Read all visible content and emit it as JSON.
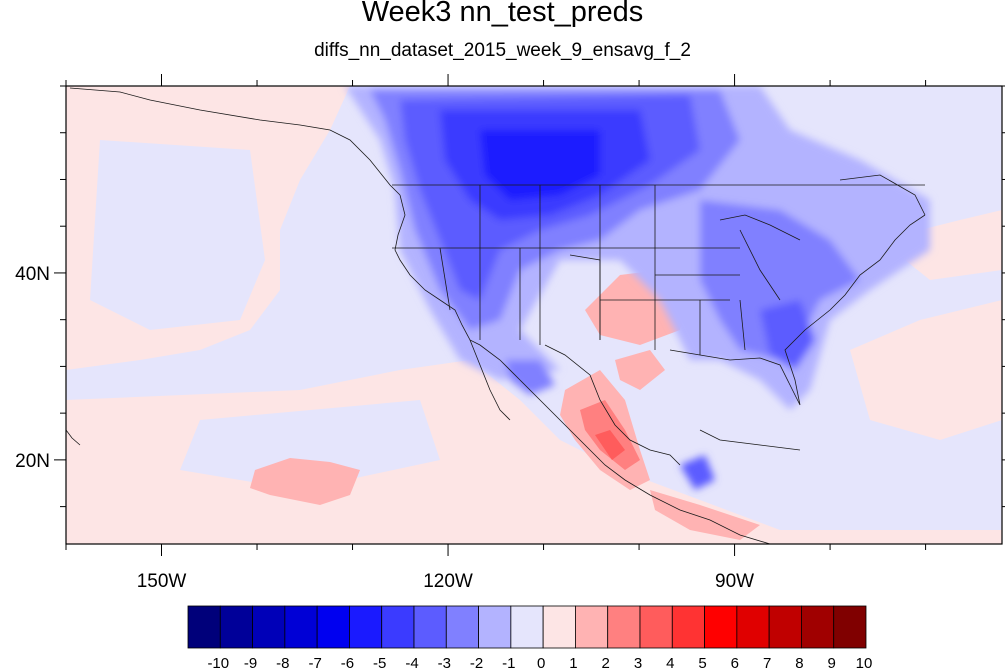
{
  "title": "Week3 nn_test_preds",
  "subtitle": "diffs_nn_dataset_2015_week_9_ensavg_f_2",
  "map": {
    "lon_range": [
      -160,
      -62
    ],
    "lat_range": [
      11,
      60
    ],
    "lon_ticks": [
      {
        "value": -150,
        "label": "150W"
      },
      {
        "value": -120,
        "label": "120W"
      },
      {
        "value": -90,
        "label": "90W"
      }
    ],
    "lat_ticks": [
      {
        "value": 40,
        "label": "40N"
      },
      {
        "value": 20,
        "label": "20N"
      }
    ]
  },
  "colorbar": {
    "labels": [
      "-10",
      "-9",
      "-8",
      "-7",
      "-6",
      "-5",
      "-4",
      "-3",
      "-2",
      "-1",
      "0",
      "1",
      "2",
      "3",
      "4",
      "5",
      "6",
      "7",
      "8",
      "9",
      "10"
    ],
    "colors": [
      "#00007a",
      "#000099",
      "#0000b8",
      "#0000d6",
      "#0000f0",
      "#1a1aff",
      "#3b3bff",
      "#5c5cff",
      "#8080ff",
      "#b3b3ff",
      "#e5e5fc",
      "#fde5e5",
      "#ffb3b3",
      "#ff8080",
      "#ff5c5c",
      "#ff3333",
      "#ff0000",
      "#e00000",
      "#c00000",
      "#a00000",
      "#800000"
    ]
  }
}
